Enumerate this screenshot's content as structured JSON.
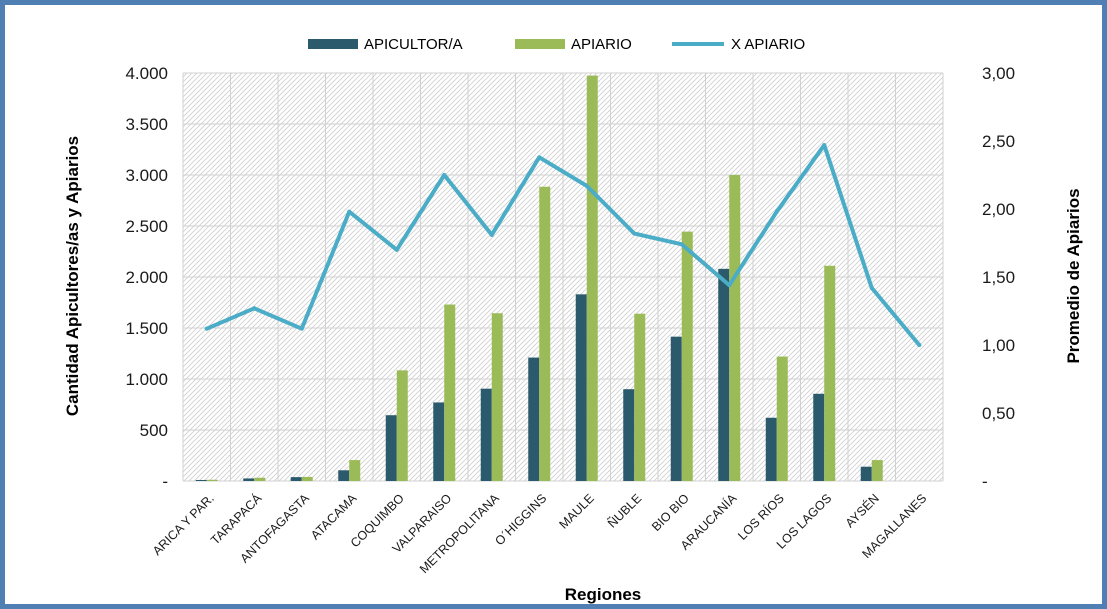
{
  "chart_data": {
    "type": "bar",
    "categories": [
      "ARICA Y PAR.",
      "TARAPACÁ",
      "ANTOFAGASTA",
      "ATACAMA",
      "COQUIMBO",
      "VALPARAISO",
      "METROPOLITANA",
      "O´HIGGINS",
      "MAULE",
      "ÑUBLE",
      "BIO BIO",
      "ARAUCANÍA",
      "LOS RÍOS",
      "LOS LAGOS",
      "AYSÉN",
      "MAGALLANES"
    ],
    "series": [
      {
        "name": "APICULTOR/A",
        "type": "bar",
        "axis": "left",
        "color": "#2a5a6c",
        "values": [
          10,
          25,
          38,
          105,
          645,
          770,
          905,
          1210,
          1830,
          900,
          1415,
          2080,
          620,
          855,
          140,
          0
        ]
      },
      {
        "name": "APIARIO",
        "type": "bar",
        "axis": "left",
        "color": "#9bbb59",
        "values": [
          12,
          32,
          40,
          205,
          1085,
          1730,
          1645,
          2885,
          3975,
          1640,
          2445,
          3000,
          1220,
          2110,
          205,
          0
        ]
      },
      {
        "name": "X  APIARIO",
        "type": "line",
        "axis": "right",
        "color": "#4aacc6",
        "values": [
          1.12,
          1.27,
          1.12,
          1.98,
          1.7,
          2.25,
          1.81,
          2.38,
          2.17,
          1.82,
          1.74,
          1.44,
          1.98,
          2.47,
          1.42,
          1.0
        ]
      }
    ],
    "xlabel": "Regiones",
    "ylabel": "Cantidad Apicultores/as y Apiarios",
    "y2label": "Promedio de Apiarios",
    "ylim": [
      0,
      4000
    ],
    "y2lim": [
      0,
      3
    ],
    "yticks": [
      "-",
      "500",
      "1.000",
      "1.500",
      "2.000",
      "2.500",
      "3.000",
      "3.500",
      "4.000"
    ],
    "y2ticks": [
      "-",
      "0,50",
      "1,00",
      "1,50",
      "2,00",
      "2,50",
      "3,00"
    ],
    "grid": true,
    "legend_position": "top"
  }
}
